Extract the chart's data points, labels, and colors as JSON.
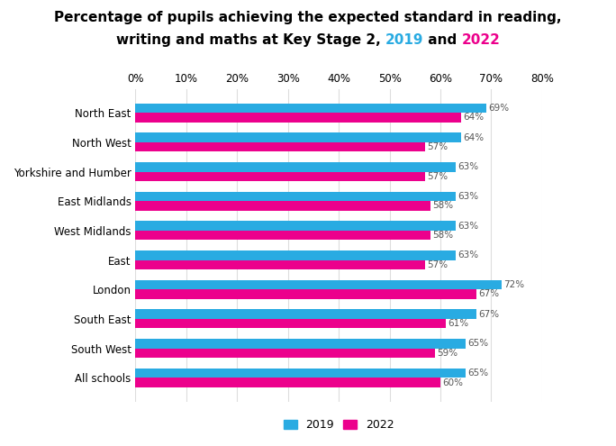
{
  "title_line1": "Percentage of pupils achieving the expected standard in reading,",
  "title_line2_pre": "writing and maths at Key Stage 2, ",
  "title_year1": "2019",
  "title_and": " and ",
  "title_year2": "2022",
  "color_2019": "#29ABE2",
  "color_2022": "#EC008C",
  "regions": [
    "North East",
    "North West",
    "Yorkshire and Humber",
    "East Midlands",
    "West Midlands",
    "East",
    "London",
    "South East",
    "South West",
    "All schools"
  ],
  "values_2019": [
    69,
    64,
    63,
    63,
    63,
    63,
    72,
    67,
    65,
    65
  ],
  "values_2022": [
    64,
    57,
    57,
    58,
    58,
    57,
    67,
    61,
    59,
    60
  ],
  "xlim": [
    0,
    80
  ],
  "xticks": [
    0,
    10,
    20,
    30,
    40,
    50,
    60,
    70,
    80
  ],
  "bar_height": 0.32,
  "legend_label_2019": "2019",
  "legend_label_2022": "2022",
  "title_fontsize": 11,
  "axis_fontsize": 8.5,
  "label_fontsize": 7.5,
  "legend_fontsize": 9
}
